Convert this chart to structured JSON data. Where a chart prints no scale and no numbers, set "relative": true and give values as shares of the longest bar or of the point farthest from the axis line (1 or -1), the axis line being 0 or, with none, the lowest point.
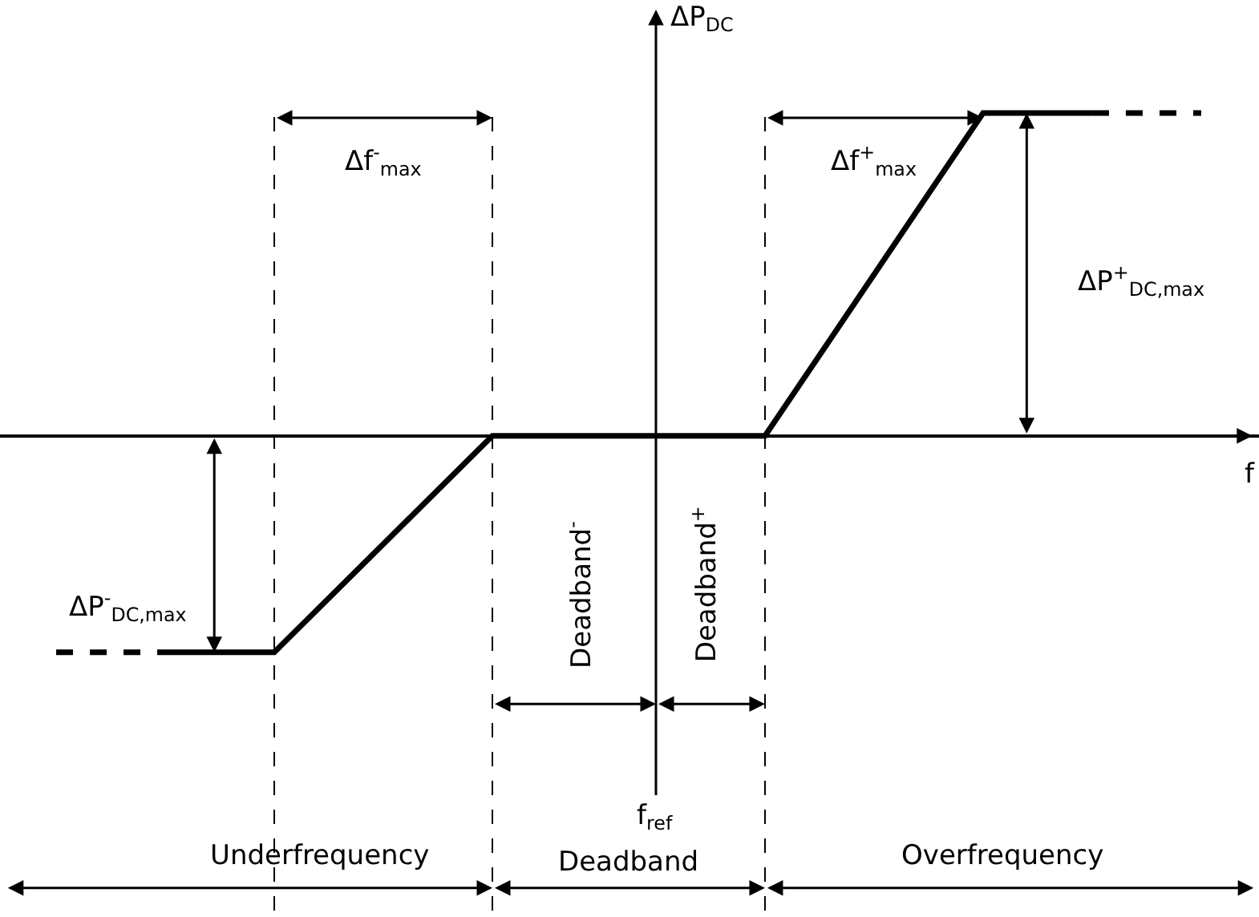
{
  "chart_data": {
    "type": "line",
    "relative": true,
    "xlabel": "f",
    "ylabel": "ΔP$_{DC}$",
    "categories": [
      null,
      null,
      null,
      null,
      null,
      null,
      null,
      null,
      null,
      null,
      null,
      null,
      null,
      null,
      null,
      null,
      null,
      null,
      null,
      null,
      null,
      null
    ],
    "series": [
      {
        "color": "#000000",
        "line_style": "dashed",
        "values": [
          -0.67,
          null,
          -0.67,
          null,
          null,
          null,
          null,
          null,
          null,
          null,
          null,
          null,
          null,
          null,
          null,
          null,
          null,
          null,
          null,
          null,
          null,
          null
        ]
      },
      {
        "color": "#000000",
        "line_style": "solid",
        "values": [
          null,
          null,
          -0.67,
          null,
          -0.67,
          null,
          null,
          null,
          0,
          null,
          null,
          null,
          null,
          0,
          null,
          null,
          null,
          1,
          null,
          1,
          null,
          null
        ]
      },
      {
        "color": "#000000",
        "line_style": "dashed",
        "values": [
          null,
          null,
          null,
          null,
          null,
          null,
          null,
          null,
          null,
          null,
          null,
          null,
          null,
          null,
          null,
          null,
          null,
          null,
          null,
          1,
          null,
          1
        ]
      }
    ],
    "annotations": [
      "Δf$^{-}$$_{max}$",
      "Δf$^{+}$$_{max}$",
      "ΔP$^{+}$$_{DC,max}$",
      "ΔP$^{-}$$_{DC,max}$",
      "Deadband$^{-}$",
      "Deadband$^{+}$",
      "f$_{ref}$",
      "Underfrequency",
      "Deadband",
      "Overfrequency"
    ]
  }
}
